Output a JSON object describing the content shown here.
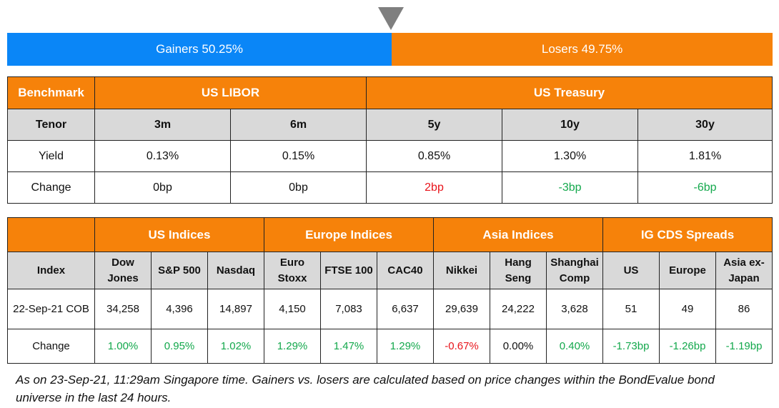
{
  "sentiment": {
    "gainers": "Gainers 50.25%",
    "losers": "Losers 49.75%",
    "gainers_pct": 50.25,
    "losers_pct": 49.75,
    "gainers_color": "#0a86f7",
    "losers_color": "#f6820a"
  },
  "rates": {
    "benchmark": "Benchmark",
    "groups": [
      "US LIBOR",
      "US Treasury"
    ],
    "tenor_label": "Tenor",
    "tenors": [
      "3m",
      "6m",
      "5y",
      "10y",
      "30y"
    ],
    "yield_label": "Yield",
    "yields": [
      "0.13%",
      "0.15%",
      "0.85%",
      "1.30%",
      "1.81%"
    ],
    "change_label": "Change",
    "changes": [
      "0bp",
      "0bp",
      "2bp",
      "-3bp",
      "-6bp"
    ]
  },
  "indices": {
    "groups": [
      "US Indices",
      "Europe Indices",
      "Asia Indices",
      "IG CDS Spreads"
    ],
    "index_label": "Index",
    "names": [
      "Dow Jones",
      "S&P 500",
      "Nasdaq",
      "Euro Stoxx",
      "FTSE 100",
      "CAC40",
      "Nikkei",
      "Hang Seng",
      "Shanghai Comp",
      "US",
      "Europe",
      "Asia ex-Japan"
    ],
    "date_label": "22-Sep-21 COB",
    "values": [
      "34,258",
      "4,396",
      "14,897",
      "4,150",
      "7,083",
      "6,637",
      "29,639",
      "24,222",
      "3,628",
      "51",
      "49",
      "86"
    ],
    "change_label": "Change",
    "changes": [
      "1.00%",
      "0.95%",
      "1.02%",
      "1.29%",
      "1.47%",
      "1.29%",
      "-0.67%",
      "0.00%",
      "0.40%",
      "-1.73bp",
      "-1.26bp",
      "-1.19bp"
    ]
  },
  "note": "As on 23-Sep-21, 11:29am Singapore time. Gainers vs. losers are calculated based on price changes within the BondEvalue bond universe in the last 24 hours."
}
